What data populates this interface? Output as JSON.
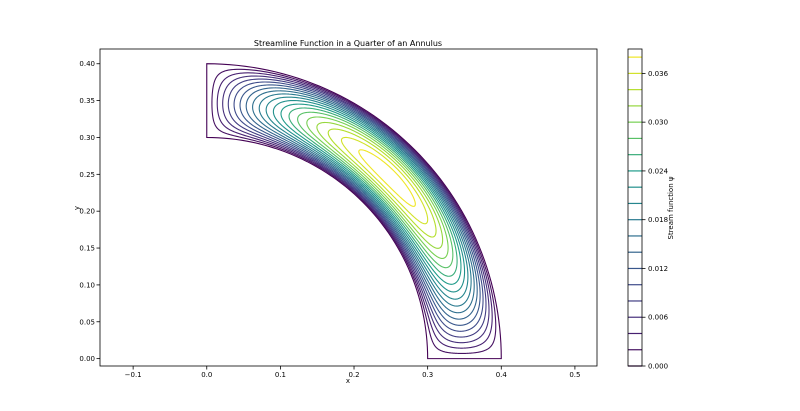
{
  "chart_data": {
    "type": "contour",
    "title": "Streamline Function in a Quarter of an Annulus",
    "xlabel": "x",
    "ylabel": "y",
    "xlim": [
      -0.145,
      0.53
    ],
    "ylim": [
      -0.01,
      0.42
    ],
    "x_ticks": [
      -0.1,
      0.0,
      0.1,
      0.2,
      0.3,
      0.4,
      0.5
    ],
    "x_tick_labels": [
      "−0.1",
      "0.0",
      "0.1",
      "0.2",
      "0.3",
      "0.4",
      "0.5"
    ],
    "y_ticks": [
      0.0,
      0.05,
      0.1,
      0.15,
      0.2,
      0.25,
      0.3,
      0.35,
      0.4
    ],
    "y_tick_labels": [
      "0.00",
      "0.05",
      "0.10",
      "0.15",
      "0.20",
      "0.25",
      "0.30",
      "0.35",
      "0.40"
    ],
    "domain": {
      "shape": "quarter-annulus",
      "inner_radius": 0.3,
      "outer_radius": 0.4,
      "theta_range_deg": [
        0,
        90
      ]
    },
    "grid": false,
    "colormap": "viridis",
    "levels": [
      0.0,
      0.002,
      0.004,
      0.006,
      0.008,
      0.01,
      0.012,
      0.014,
      0.016,
      0.018,
      0.02,
      0.022,
      0.024,
      0.026,
      0.028,
      0.03,
      0.032,
      0.034,
      0.036,
      0.038
    ],
    "psi_max": 0.0395,
    "colorbar": {
      "label": "Stream function ψ",
      "range": [
        0.0,
        0.039
      ],
      "ticks": [
        0.0,
        0.006,
        0.012,
        0.018,
        0.024,
        0.03,
        0.036
      ],
      "tick_labels": [
        "0.000",
        "0.006",
        "0.012",
        "0.018",
        "0.024",
        "0.030",
        "0.036"
      ]
    }
  }
}
